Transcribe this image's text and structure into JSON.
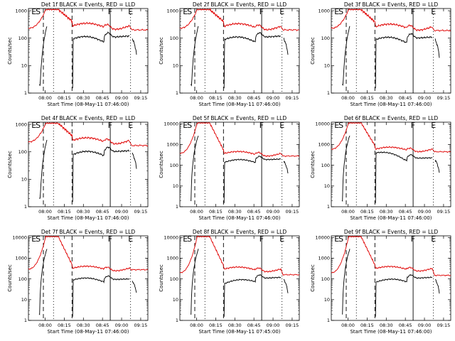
{
  "figure": {
    "type": "multi-panel time series",
    "yscale": "log",
    "colors": {
      "events": "#000000",
      "lld": "#e00000"
    }
  },
  "chart_data": [
    {
      "type": "line",
      "title": "Det 1f BLACK = Events, RED = LLD",
      "xlabel": "Start Time (08-May-11 07:46:00)",
      "ylabel": "Counts/sec",
      "xticks": [
        "08:00",
        "08:15",
        "08:30",
        "08:45",
        "09:00",
        "09:15"
      ],
      "yticks": [
        "1",
        "10",
        "100",
        "1000"
      ],
      "ylim": [
        1,
        1200
      ],
      "markers": [
        "E",
        "S",
        "F",
        "E"
      ],
      "peak": 1100,
      "series": [
        {
          "name": "Events",
          "levels": {
            "start": 95,
            "mid": 80,
            "end": 120,
            "drop": 25
          }
        },
        {
          "name": "LLD",
          "levels": {
            "start": 230,
            "mid": 280,
            "end": 200
          }
        }
      ]
    },
    {
      "type": "line",
      "title": "Det 2f BLACK = Events, RED = LLD",
      "xlabel": "Start Time (08-May-11 07:46:00)",
      "ylabel": "Counts/sec",
      "xticks": [
        "08:00",
        "08:15",
        "08:30",
        "08:45",
        "09:00",
        "09:15"
      ],
      "yticks": [
        "1",
        "10",
        "100",
        "1000"
      ],
      "ylim": [
        1,
        1200
      ],
      "markers": [
        "E",
        "S",
        "F",
        "E"
      ],
      "peak": 1100,
      "series": [
        {
          "name": "Events",
          "levels": {
            "start": 90,
            "mid": 80,
            "end": 120,
            "drop": 25
          }
        },
        {
          "name": "LLD",
          "levels": {
            "start": 230,
            "mid": 270,
            "end": 200
          }
        }
      ]
    },
    {
      "type": "line",
      "title": "Det 3f BLACK = Events, RED = LLD",
      "xlabel": "Start Time (08-May-11 07:46:00)",
      "ylabel": "Counts/sec",
      "xticks": [
        "08:00",
        "08:15",
        "08:30",
        "08:45",
        "09:00",
        "09:15"
      ],
      "yticks": [
        "1",
        "10",
        "100",
        "1000"
      ],
      "ylim": [
        1,
        1200
      ],
      "markers": [
        "E",
        "S",
        "F",
        "E"
      ],
      "peak": 1100,
      "series": [
        {
          "name": "Events",
          "levels": {
            "start": 90,
            "mid": 75,
            "end": 110,
            "drop": 20
          }
        },
        {
          "name": "LLD",
          "levels": {
            "start": 230,
            "mid": 260,
            "end": 190
          }
        }
      ]
    },
    {
      "type": "line",
      "title": "Det 4f BLACK = Events, RED = LLD",
      "xlabel": "Start Time (08-May-11 07:46:00)",
      "ylabel": "Counts/sec",
      "xticks": [
        "08:00",
        "08:15",
        "08:30",
        "08:45",
        "09:00",
        "09:15"
      ],
      "yticks": [
        "1",
        "10",
        "100",
        "1000"
      ],
      "ylim": [
        1,
        1200
      ],
      "markers": [
        "E",
        "S",
        "F",
        "E"
      ],
      "peak": 1100,
      "series": [
        {
          "name": "Events",
          "levels": {
            "start": 80,
            "mid": 80,
            "end": 110,
            "drop": 25
          }
        },
        {
          "name": "LLD",
          "levels": {
            "start": 230,
            "mid": 260,
            "end": 170
          }
        }
      ]
    },
    {
      "type": "line",
      "title": "Det 5f BLACK = Events, RED = LLD",
      "xlabel": "Start Time (08-May-11 07:46:00)",
      "ylabel": "Counts/sec",
      "xticks": [
        "08:00",
        "08:15",
        "08:30",
        "08:45",
        "09:00",
        "09:15"
      ],
      "yticks": [
        "1",
        "10",
        "100",
        "1000",
        "10000"
      ],
      "ylim": [
        1,
        12000
      ],
      "markers": [
        "E",
        "S",
        "F",
        "E"
      ],
      "peak": 11000,
      "series": [
        {
          "name": "Events",
          "levels": {
            "start": 140,
            "mid": 150,
            "end": 200,
            "drop": 40
          }
        },
        {
          "name": "LLD",
          "levels": {
            "start": 380,
            "mid": 370,
            "end": 280
          }
        }
      ]
    },
    {
      "type": "line",
      "title": "Det 6f BLACK = Events, RED = LLD",
      "xlabel": "Start Time (08-May-11 07:46:00)",
      "ylabel": "Counts/sec",
      "xticks": [
        "08:00",
        "08:15",
        "08:30",
        "08:45",
        "09:00",
        "09:15"
      ],
      "yticks": [
        "1",
        "10",
        "100",
        "1000",
        "10000"
      ],
      "ylim": [
        1,
        12000
      ],
      "markers": [
        "E",
        "S",
        "F",
        "E"
      ],
      "peak": 11000,
      "series": [
        {
          "name": "Events",
          "levels": {
            "start": 400,
            "mid": 190,
            "end": 230,
            "drop": 40
          }
        },
        {
          "name": "LLD",
          "levels": {
            "start": 600,
            "mid": 600,
            "end": 450
          }
        }
      ]
    },
    {
      "type": "line",
      "title": "Det 7f BLACK = Events, RED = LLD",
      "xlabel": "Start Time (08-May-11 07:46:00)",
      "ylabel": "Counts/sec",
      "xticks": [
        "08:00",
        "08:15",
        "08:30",
        "08:45",
        "09:00",
        "09:15"
      ],
      "yticks": [
        "1",
        "10",
        "100",
        "1000",
        "10000"
      ],
      "ylim": [
        1,
        12000
      ],
      "markers": [
        "E",
        "S",
        "F",
        "E"
      ],
      "peak": 11000,
      "series": [
        {
          "name": "Events",
          "levels": {
            "start": 90,
            "mid": 80,
            "end": 100,
            "drop": 20
          }
        },
        {
          "name": "LLD",
          "levels": {
            "start": 300,
            "mid": 330,
            "end": 280
          }
        }
      ]
    },
    {
      "type": "line",
      "title": "Det 8f BLACK = Events, RED = LLD",
      "xlabel": "Start Time (08-May-11 07:45:00)",
      "ylabel": "Counts/sec",
      "xticks": [
        "08:00",
        "08:15",
        "08:30",
        "08:45",
        "09:00",
        "09:15"
      ],
      "yticks": [
        "1",
        "10",
        "100",
        "1000",
        "10000"
      ],
      "ylim": [
        1,
        12000
      ],
      "markers": [
        "E",
        "S",
        "F",
        "E"
      ],
      "peak": 11000,
      "series": [
        {
          "name": "Events",
          "levels": {
            "start": 60,
            "mid": 80,
            "end": 120,
            "drop": 20
          }
        },
        {
          "name": "LLD",
          "levels": {
            "start": 200,
            "mid": 300,
            "end": 160
          }
        }
      ]
    },
    {
      "type": "line",
      "title": "Det 9f BLACK = Events, RED = LLD",
      "xlabel": "Start Time (08-May-11 07:46:00)",
      "ylabel": "Counts/sec",
      "xticks": [
        "08:00",
        "08:15",
        "08:30",
        "08:45",
        "09:00",
        "09:15"
      ],
      "yticks": [
        "1",
        "10",
        "100",
        "1000",
        "10000"
      ],
      "ylim": [
        1,
        12000
      ],
      "markers": [
        "E",
        "S",
        "F",
        "E"
      ],
      "peak": 11000,
      "series": [
        {
          "name": "Events",
          "levels": {
            "start": 70,
            "mid": 80,
            "end": 120,
            "drop": 20
          }
        },
        {
          "name": "LLD",
          "levels": {
            "start": 200,
            "mid": 320,
            "end": 150
          }
        }
      ]
    }
  ]
}
